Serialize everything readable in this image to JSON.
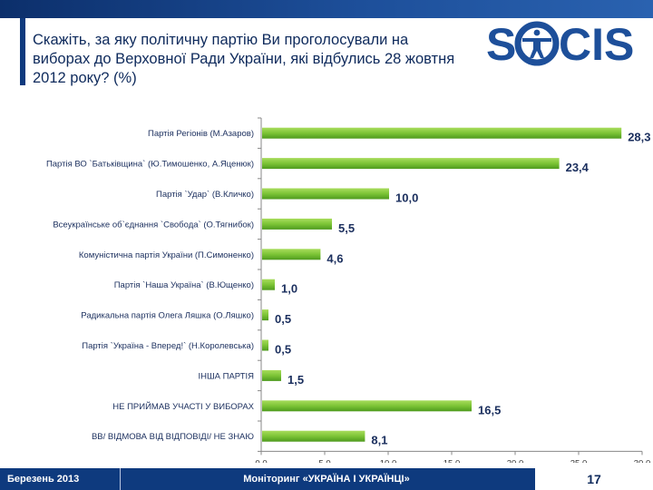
{
  "question": "Скажіть, за яку політичну партію Ви проголосували на виборах до Верховної Ради України, які відбулись 28 жовтня 2012 року? (%)",
  "logo": {
    "text": "SOCIS",
    "color": "#1d4f9a"
  },
  "footer": {
    "date": "Березень 2013",
    "title": "Моніторинг «УКРАЇНА І УКРАЇНЦІ»",
    "page": "17"
  },
  "colors": {
    "bar": "#6db72c",
    "bar_light": "#a8dc5c",
    "value": "#1b2f5e",
    "axis": "#888888"
  },
  "chart_data": {
    "type": "bar",
    "orientation": "horizontal",
    "categories": [
      "Партія Регіонів (М.Азаров)",
      "Партія ВО `Батьківщина` (Ю.Тимошенко, А.Яценюк)",
      "Партія `Удар` (В.Кличко)",
      "Всеукраїнське об`єднання `Свобода` (О.Тягнибок)",
      "Комуністична партія України (П.Симоненко)",
      "Партія `Наша Україна` (В.Ющенко)",
      "Радикальна партія Олега Ляшка (О.Ляшко)",
      "Партія `Україна - Вперед!` (Н.Королевська)",
      "ІНША ПАРТІЯ",
      "НЕ ПРИЙМАВ УЧАСТІ У ВИБОРАХ",
      "ВВ/ ВІДМОВА ВІД ВІДПОВІДІ/ НЕ ЗНАЮ"
    ],
    "values": [
      28.3,
      23.4,
      10.0,
      5.5,
      4.6,
      1.0,
      0.5,
      0.5,
      1.5,
      16.5,
      8.1
    ],
    "value_labels": [
      "28,3",
      "23,4",
      "10,0",
      "5,5",
      "4,6",
      "1,0",
      "0,5",
      "0,5",
      "1,5",
      "16,5",
      "8,1"
    ],
    "xlim": [
      0,
      30
    ],
    "xticks": [
      "0,0",
      "5,0",
      "10,0",
      "15,0",
      "20,0",
      "25,0",
      "30,0"
    ],
    "title": "",
    "xlabel": "",
    "ylabel": ""
  }
}
